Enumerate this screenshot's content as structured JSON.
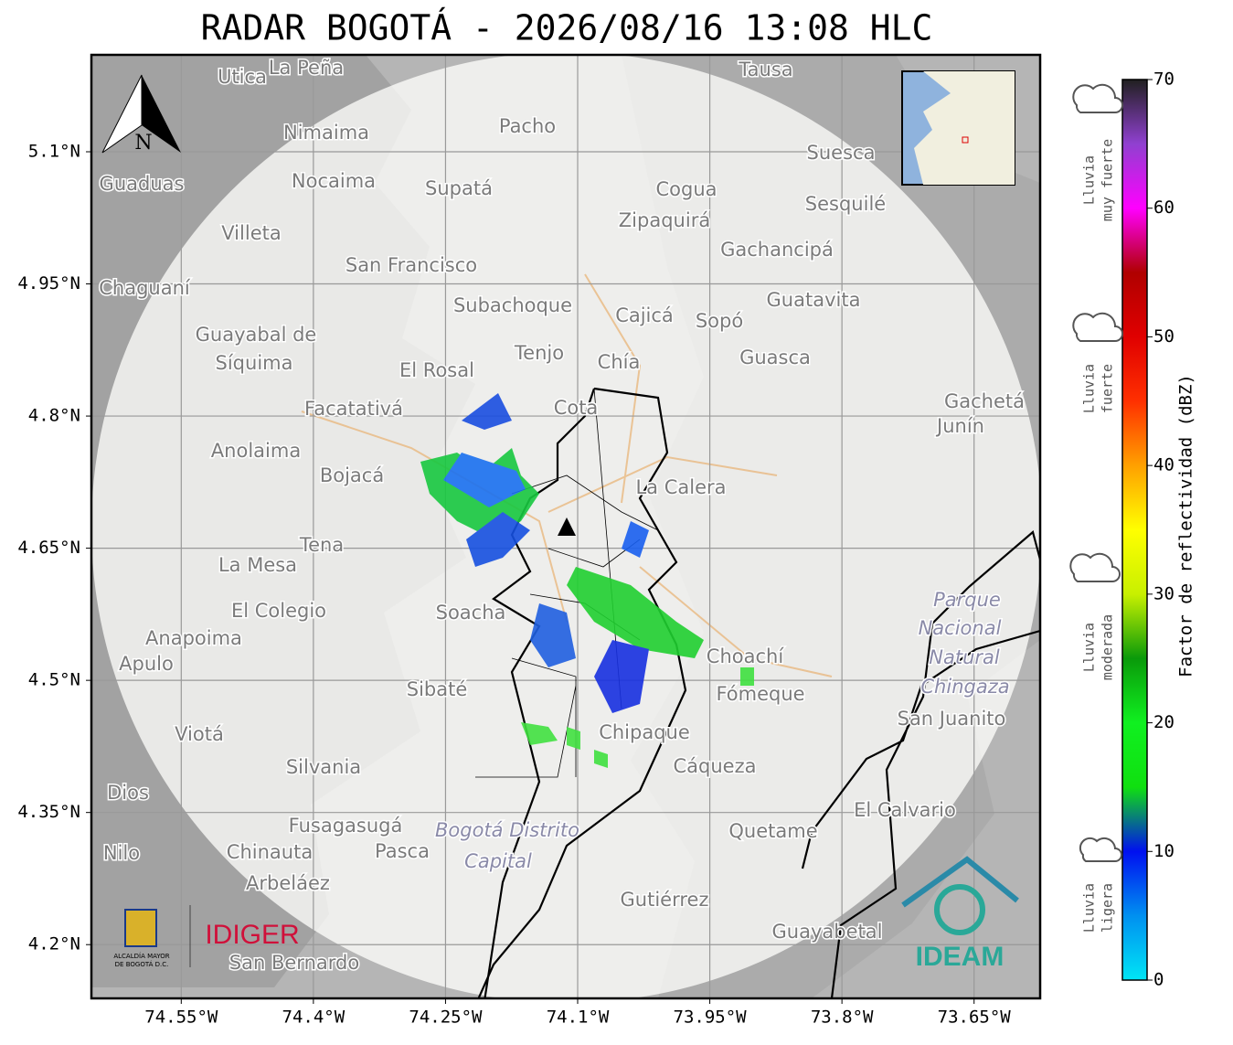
{
  "title": "RADAR BOGOTÁ - 2026/08/16 13:08 HLC",
  "map": {
    "xlim": [
      -74.652,
      -73.575
    ],
    "ylim": [
      4.139,
      5.21
    ],
    "xticks": [
      {
        "value": -74.55,
        "label": "74.55°W"
      },
      {
        "value": -74.4,
        "label": "74.4°W"
      },
      {
        "value": -74.25,
        "label": "74.25°W"
      },
      {
        "value": -74.1,
        "label": "74.1°W"
      },
      {
        "value": -73.95,
        "label": "73.95°W"
      },
      {
        "value": -73.8,
        "label": "73.8°W"
      },
      {
        "value": -73.65,
        "label": "73.65°W"
      }
    ],
    "yticks": [
      {
        "value": 5.1,
        "label": "5.1°N"
      },
      {
        "value": 4.95,
        "label": "4.95°N"
      },
      {
        "value": 4.8,
        "label": "4.8°N"
      },
      {
        "value": 4.65,
        "label": "4.65°N"
      },
      {
        "value": 4.5,
        "label": "4.5°N"
      },
      {
        "value": 4.35,
        "label": "4.35°N"
      },
      {
        "value": 4.2,
        "label": "4.2°N"
      }
    ],
    "north": "N",
    "places": [
      "La Peña",
      "Utica",
      "Tausa",
      "Pacho",
      "Nimaima",
      "Guaduas",
      "Nocaima",
      "Supatá",
      "Cogua",
      "Suesca",
      "Sesquilé",
      "Zipaquirá",
      "Villeta",
      "Gachancipá",
      "San Francisco",
      "Chaguaní",
      "Guatavita",
      "Subachoque",
      "Cajicá",
      "Sopó",
      "Guayabal de",
      "Síquima",
      "Tenjo",
      "Guasca",
      "El Rosal",
      "Chía",
      "Facatativá",
      "Cota",
      "Gachetá",
      "Junín",
      "Anolaima",
      "Bojacá",
      "La Calera",
      "Tena",
      "La Mesa",
      "Soacha",
      "El Colegio",
      "Anapoima",
      "Apulo",
      "Choachí",
      "Sibaté",
      "Fómeque",
      "San Juanito",
      "Viotá",
      "Chipaque",
      "Silvania",
      "Cáqueza",
      "El Calvario",
      "Fusagasugá",
      "Quetame",
      "Chinauta",
      "Pasca",
      "Nilo",
      "Arbeláez",
      "Gutiérrez",
      "Guayabetal",
      "San Bernardo",
      "Dios"
    ],
    "italic_places": [
      "Parque",
      "Nacional",
      "Natural",
      "Chingaza",
      "Bogotá Distrito",
      "Capital"
    ]
  },
  "colorbar": {
    "label": "Factor de reflectividad (dBZ)",
    "lim": [
      0,
      70
    ],
    "ticks": [
      0,
      10,
      20,
      30,
      40,
      50,
      60,
      70
    ],
    "colors": [
      "#00e5f5",
      "#0090f0",
      "#0010f0",
      "#10e010",
      "#10f020",
      "#0a9a0a",
      "#c8f000",
      "#ffff00",
      "#ffa000",
      "#ff3000",
      "#e00000",
      "#b00000",
      "#ff00ff",
      "#9040d0",
      "#202020"
    ]
  },
  "legend": [
    [
      "Lluvia",
      "muy fuerte"
    ],
    [
      "Lluvia",
      "fuerte"
    ],
    [
      "Lluvia",
      "moderada"
    ],
    [
      "Lluvia",
      "ligera"
    ]
  ],
  "logos": {
    "alcaldia": [
      "ALCALDÍA MAYOR",
      "DE BOGOTÁ D.C."
    ],
    "idiger": "IDIGER",
    "ideam": "IDEAM"
  }
}
